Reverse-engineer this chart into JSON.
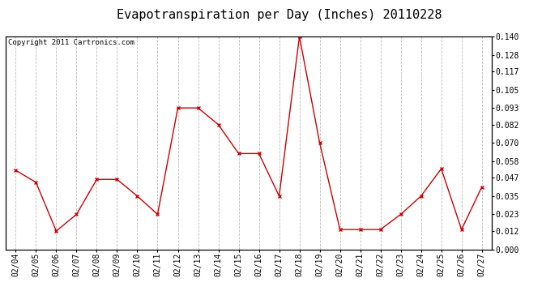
{
  "title": "Evapotranspiration per Day (Inches) 20110228",
  "copyright_text": "Copyright 2011 Cartronics.com",
  "x_labels": [
    "02/04",
    "02/05",
    "02/06",
    "02/07",
    "02/08",
    "02/09",
    "02/10",
    "02/11",
    "02/12",
    "02/13",
    "02/14",
    "02/15",
    "02/16",
    "02/17",
    "02/18",
    "02/19",
    "02/20",
    "02/21",
    "02/22",
    "02/23",
    "02/24",
    "02/25",
    "02/26",
    "02/27"
  ],
  "y_values": [
    0.052,
    0.044,
    0.012,
    0.023,
    0.046,
    0.046,
    0.035,
    0.023,
    0.093,
    0.093,
    0.082,
    0.063,
    0.063,
    0.035,
    0.14,
    0.07,
    0.013,
    0.013,
    0.013,
    0.023,
    0.035,
    0.053,
    0.013,
    0.041
  ],
  "y_ticks": [
    0.0,
    0.012,
    0.023,
    0.035,
    0.047,
    0.058,
    0.07,
    0.082,
    0.093,
    0.105,
    0.117,
    0.128,
    0.14
  ],
  "ylim": [
    0.0,
    0.14
  ],
  "line_color": "#cc0000",
  "marker": "x",
  "marker_color": "#cc0000",
  "bg_color": "#ffffff",
  "grid_color": "#bbbbbb",
  "title_fontsize": 11,
  "tick_fontsize": 7,
  "copyright_fontsize": 6.5
}
